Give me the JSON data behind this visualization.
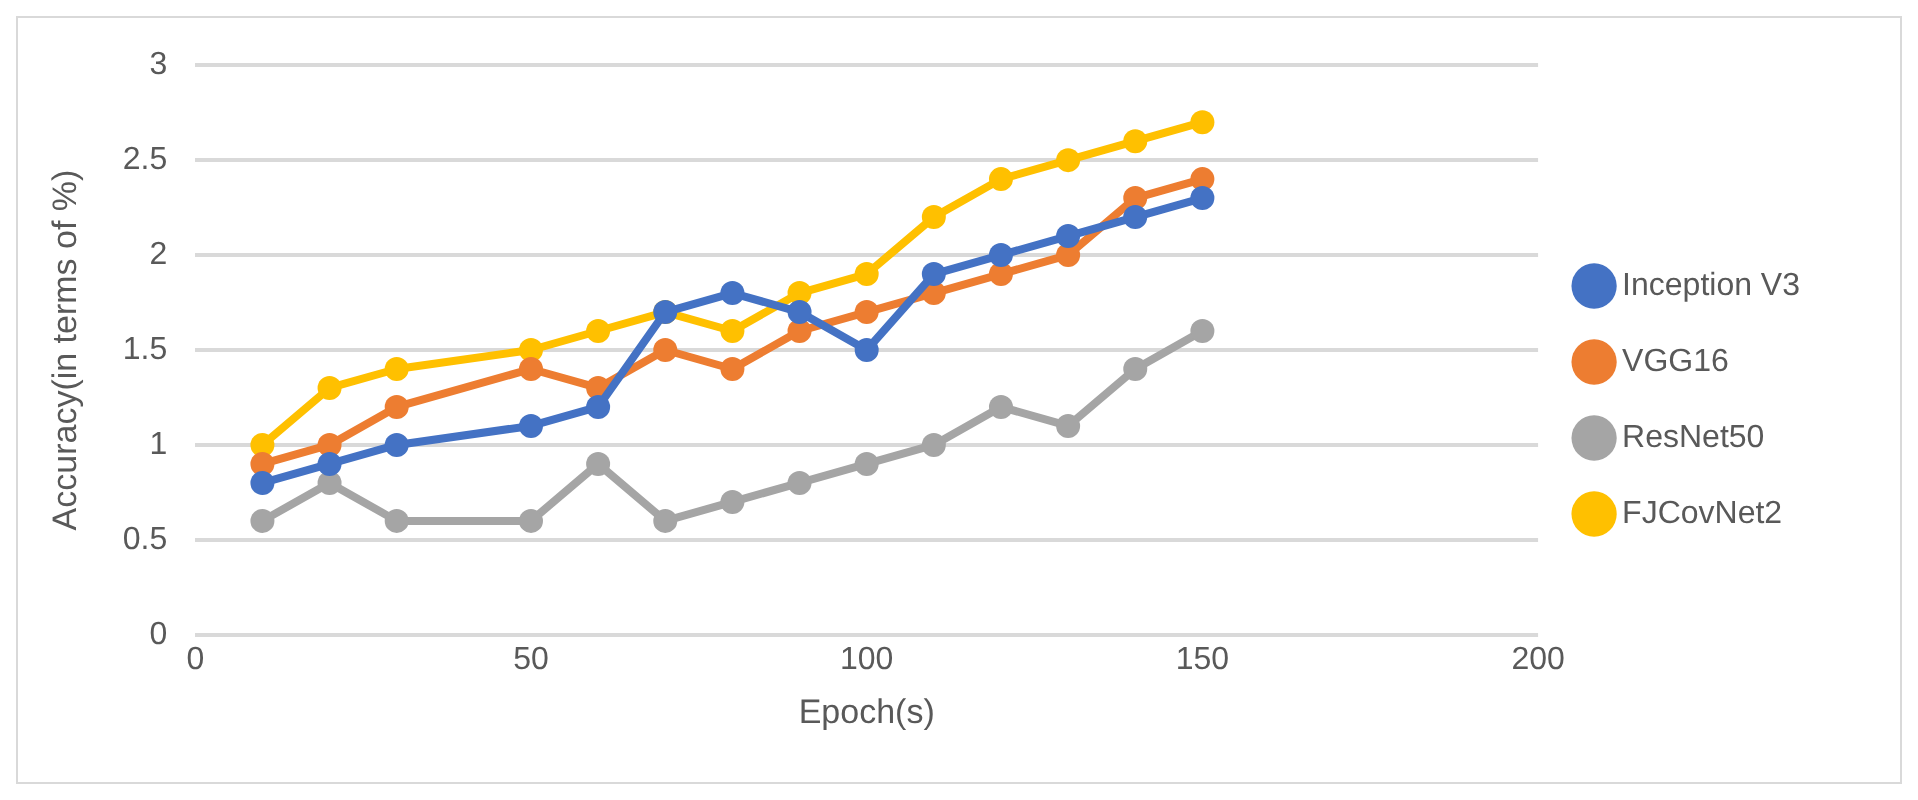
{
  "chart_data": {
    "type": "line",
    "xlabel": "Epoch(s)",
    "ylabel": "Accuracy(in terms of %)",
    "x": [
      10,
      20,
      30,
      50,
      60,
      70,
      80,
      90,
      100,
      110,
      120,
      130,
      140,
      150
    ],
    "series": [
      {
        "name": "Inception V3",
        "color": "#4472c4",
        "values": [
          0.8,
          0.9,
          1.0,
          1.1,
          1.2,
          1.7,
          1.8,
          1.7,
          1.5,
          1.9,
          2.0,
          2.1,
          2.2,
          2.3
        ]
      },
      {
        "name": "VGG16",
        "color": "#ed7d31",
        "values": [
          0.9,
          1.0,
          1.2,
          1.4,
          1.3,
          1.5,
          1.4,
          1.6,
          1.7,
          1.8,
          1.9,
          2.0,
          2.3,
          2.4
        ]
      },
      {
        "name": "ResNet50",
        "color": "#a5a5a5",
        "values": [
          0.6,
          0.8,
          0.6,
          0.6,
          0.9,
          0.6,
          0.7,
          0.8,
          0.9,
          1.0,
          1.2,
          1.1,
          1.4,
          1.6
        ]
      },
      {
        "name": "FJCovNet2",
        "color": "#ffc000",
        "values": [
          1.0,
          1.3,
          1.4,
          1.5,
          1.6,
          1.7,
          1.6,
          1.8,
          1.9,
          2.2,
          2.4,
          2.5,
          2.6,
          2.7
        ]
      }
    ],
    "xlim": [
      0,
      200
    ],
    "xticks": [
      0,
      50,
      100,
      150,
      200
    ],
    "ylim": [
      0,
      3
    ],
    "yticks": [
      0,
      0.5,
      1,
      1.5,
      2,
      2.5,
      3
    ],
    "grid": "y",
    "legend": "right",
    "marker": "circle",
    "line_style": "solid"
  }
}
